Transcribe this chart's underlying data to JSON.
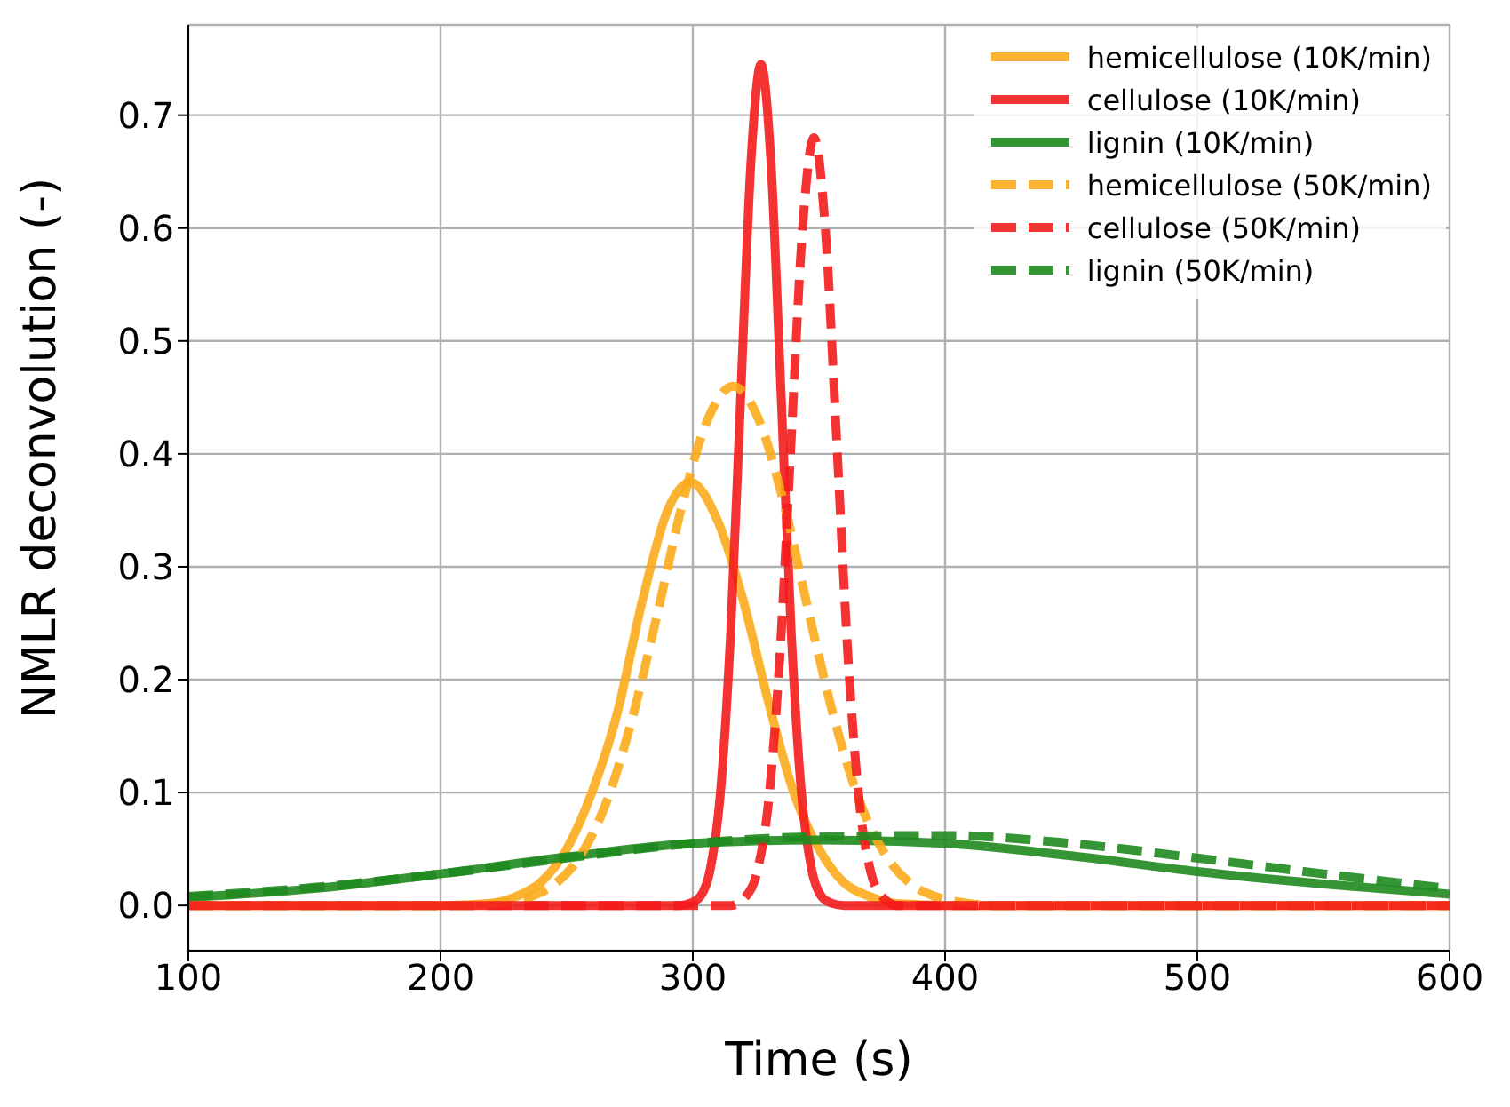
{
  "chart_data": {
    "type": "line",
    "xlabel": "Time (s)",
    "ylabel": "NMLR deconvolution (-)",
    "xlim": [
      100,
      600
    ],
    "ylim": [
      -0.04,
      0.78
    ],
    "xticks": [
      100,
      200,
      300,
      400,
      500,
      600
    ],
    "yticks": [
      {
        "value": 0,
        "label": "0.0"
      },
      0.1,
      0.2,
      0.3,
      0.4,
      0.5,
      0.6,
      0.7
    ],
    "grid": true,
    "legend": "top right",
    "marker": "none",
    "series": [
      {
        "name": "hemicellulose (10K/min)",
        "color": "#fbab1b",
        "line_style": "solid",
        "x": [
          100,
          200,
          220,
          230,
          240,
          250,
          260,
          270,
          280,
          290,
          299,
          310,
          320,
          330,
          340,
          350,
          360,
          370,
          380,
          400,
          600
        ],
        "values": [
          0,
          0,
          0.002,
          0.008,
          0.021,
          0.05,
          0.1,
          0.17,
          0.27,
          0.35,
          0.375,
          0.34,
          0.27,
          0.18,
          0.1,
          0.05,
          0.02,
          0.008,
          0.002,
          0,
          0
        ]
      },
      {
        "name": "cellulose (10K/min)",
        "color": "#f41c1c",
        "line_style": "solid",
        "x": [
          100,
          295,
          299,
          303,
          307,
          311,
          315,
          319,
          323,
          327,
          331,
          335,
          339,
          343,
          347,
          351,
          355,
          360,
          600
        ],
        "values": [
          0,
          0,
          0.002,
          0.008,
          0.033,
          0.101,
          0.242,
          0.452,
          0.657,
          0.745,
          0.657,
          0.452,
          0.242,
          0.101,
          0.033,
          0.008,
          0.002,
          0,
          0
        ]
      },
      {
        "name": "lignin (10K/min)",
        "color": "#1f8a1f",
        "line_style": "solid",
        "x": [
          100,
          150,
          200,
          250,
          300,
          350,
          400,
          450,
          500,
          550,
          600
        ],
        "values": [
          0.007,
          0.015,
          0.028,
          0.043,
          0.055,
          0.058,
          0.055,
          0.044,
          0.03,
          0.019,
          0.01
        ]
      },
      {
        "name": "hemicellulose (50K/min)",
        "color": "#fbab1b",
        "line_style": "dashed",
        "x": [
          100,
          210,
          226,
          236,
          246,
          256,
          266,
          276,
          286,
          296,
          306,
          316,
          326,
          336,
          346,
          356,
          366,
          376,
          386,
          396,
          406,
          420,
          600
        ],
        "values": [
          0,
          0,
          0.003,
          0.008,
          0.02,
          0.046,
          0.093,
          0.166,
          0.259,
          0.357,
          0.431,
          0.46,
          0.431,
          0.357,
          0.259,
          0.166,
          0.093,
          0.046,
          0.02,
          0.008,
          0.003,
          0,
          0
        ]
      },
      {
        "name": "cellulose (50K/min)",
        "color": "#f41c1c",
        "line_style": "dashed",
        "x": [
          100,
          315,
          321,
          325.5,
          330,
          334.5,
          339,
          343.5,
          348,
          352.5,
          357,
          361.5,
          366,
          370.5,
          375,
          381,
          600
        ],
        "values": [
          0,
          0,
          0.008,
          0.03,
          0.092,
          0.221,
          0.413,
          0.6,
          0.68,
          0.6,
          0.413,
          0.221,
          0.092,
          0.03,
          0.008,
          0,
          0
        ]
      },
      {
        "name": "lignin (50K/min)",
        "color": "#1f8a1f",
        "line_style": "dashed",
        "x": [
          100,
          150,
          200,
          250,
          300,
          350,
          400,
          450,
          500,
          550,
          600
        ],
        "values": [
          0.008,
          0.016,
          0.028,
          0.042,
          0.055,
          0.061,
          0.062,
          0.055,
          0.042,
          0.028,
          0.015
        ]
      }
    ]
  }
}
